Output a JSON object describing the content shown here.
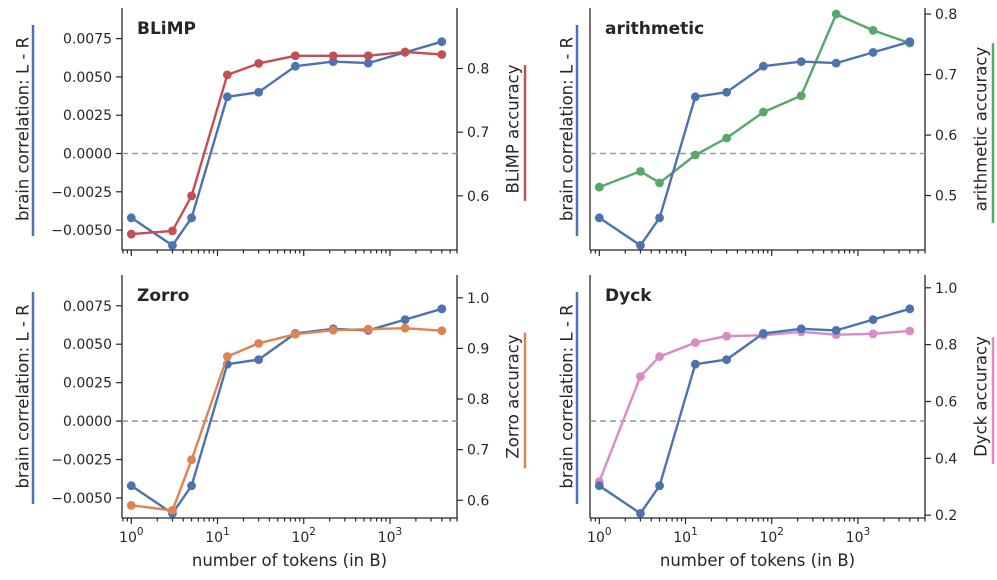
{
  "colors": {
    "brain": "#4c72b0",
    "blimp": "#c44e52",
    "arithmetic": "#55a868",
    "zorro": "#dd8452",
    "dyck": "#da8bc3",
    "zero_line": "#9a9a9a"
  },
  "chart_data": [
    {
      "type": "line",
      "title": "BLiMP",
      "xlabel": "",
      "ylabel_left": "brain correlation: L - R",
      "ylabel_right": "BLiMP accuracy",
      "xscale": "log",
      "xlim": [
        0.78,
        6000
      ],
      "x_ticks": [
        1,
        10,
        100,
        1000
      ],
      "x_tick_labels": [
        "10^0",
        "10^1",
        "10^2",
        "10^3"
      ],
      "ylim_left": [
        -0.0063,
        0.0095
      ],
      "y_ticks_left": [
        -0.005,
        -0.0025,
        0.0,
        0.0025,
        0.005,
        0.0075
      ],
      "y_tick_labels_left": [
        "−0.0050",
        "−0.0025",
        "0.0000",
        "0.0025",
        "0.0050",
        "0.0075"
      ],
      "ylim_right": [
        0.515,
        0.895
      ],
      "y_ticks_right": [
        0.6,
        0.7,
        0.8
      ],
      "y_tick_labels_right": [
        "0.6",
        "0.7",
        "0.8"
      ],
      "reference_line_left": 0.0,
      "x": [
        1,
        3,
        5,
        13,
        30,
        80,
        220,
        560,
        1500,
        4000
      ],
      "series": [
        {
          "name": "brain correlation: L - R",
          "axis": "left",
          "values": [
            -0.0042,
            -0.006,
            -0.0042,
            0.0037,
            0.004,
            0.0057,
            0.006,
            0.0059,
            0.0066,
            0.0073
          ]
        },
        {
          "name": "BLiMP accuracy",
          "axis": "right",
          "values": [
            0.54,
            0.545,
            0.6,
            0.79,
            0.808,
            0.82,
            0.82,
            0.82,
            0.826,
            0.822
          ]
        }
      ]
    },
    {
      "type": "line",
      "title": "arithmetic",
      "xlabel": "",
      "ylabel_left": "brain correlation: L - R",
      "ylabel_right": "arithmetic accuracy",
      "xscale": "log",
      "xlim": [
        0.78,
        6000
      ],
      "x_ticks": [
        1,
        10,
        100,
        1000
      ],
      "x_tick_labels": [
        "10^0",
        "10^1",
        "10^2",
        "10^3"
      ],
      "ylim_left": [
        -0.0063,
        0.0095
      ],
      "y_ticks_left": [],
      "y_tick_labels_left": [],
      "ylim_right": [
        0.41,
        0.81
      ],
      "y_ticks_right": [
        0.5,
        0.6,
        0.7,
        0.8
      ],
      "y_tick_labels_right": [
        "0.5",
        "0.6",
        "0.7",
        "0.8"
      ],
      "reference_line_left": 0.0,
      "x": [
        1,
        3,
        5,
        13,
        30,
        80,
        220,
        560,
        1500,
        4000
      ],
      "series": [
        {
          "name": "brain correlation: L - R",
          "axis": "left",
          "values": [
            -0.0042,
            -0.006,
            -0.0042,
            0.0037,
            0.004,
            0.0057,
            0.006,
            0.0059,
            0.0066,
            0.0073
          ]
        },
        {
          "name": "arithmetic accuracy",
          "axis": "right",
          "values": [
            0.514,
            0.54,
            0.521,
            0.567,
            0.595,
            0.638,
            0.665,
            0.8,
            0.773,
            0.752
          ]
        }
      ]
    },
    {
      "type": "line",
      "title": "Zorro",
      "xlabel": "number of tokens (in B)",
      "ylabel_left": "brain correlation: L - R",
      "ylabel_right": "Zorro accuracy",
      "xscale": "log",
      "xlim": [
        0.78,
        6000
      ],
      "x_ticks": [
        1,
        10,
        100,
        1000
      ],
      "x_tick_labels": [
        "10^0",
        "10^1",
        "10^2",
        "10^3"
      ],
      "ylim_left": [
        -0.0063,
        0.0095
      ],
      "y_ticks_left": [
        -0.005,
        -0.0025,
        0.0,
        0.0025,
        0.005,
        0.0075
      ],
      "y_tick_labels_left": [
        "−0.0050",
        "−0.0025",
        "0.0000",
        "0.0025",
        "0.0050",
        "0.0075"
      ],
      "ylim_right": [
        0.565,
        1.045
      ],
      "y_ticks_right": [
        0.6,
        0.7,
        0.8,
        0.9,
        1.0
      ],
      "y_tick_labels_right": [
        "0.6",
        "0.7",
        "0.8",
        "0.9",
        "1.0"
      ],
      "reference_line_left": 0.0,
      "x": [
        1,
        3,
        5,
        13,
        30,
        80,
        220,
        560,
        1500,
        4000
      ],
      "series": [
        {
          "name": "brain correlation: L - R",
          "axis": "left",
          "values": [
            -0.0042,
            -0.006,
            -0.0042,
            0.0037,
            0.004,
            0.0057,
            0.006,
            0.0059,
            0.0066,
            0.0073
          ]
        },
        {
          "name": "Zorro accuracy",
          "axis": "right",
          "values": [
            0.59,
            0.58,
            0.68,
            0.884,
            0.91,
            0.928,
            0.936,
            0.938,
            0.94,
            0.935
          ]
        }
      ]
    },
    {
      "type": "line",
      "title": "Dyck",
      "xlabel": "number of tokens (in B)",
      "ylabel_left": "brain correlation: L - R",
      "ylabel_right": "Dyck accuracy",
      "xscale": "log",
      "xlim": [
        0.78,
        6000
      ],
      "x_ticks": [
        1,
        10,
        100,
        1000
      ],
      "x_tick_labels": [
        "10^0",
        "10^1",
        "10^2",
        "10^3"
      ],
      "ylim_left": [
        -0.0063,
        0.0095
      ],
      "y_ticks_left": [],
      "y_tick_labels_left": [],
      "ylim_right": [
        0.19,
        1.045
      ],
      "y_ticks_right": [
        0.2,
        0.4,
        0.6,
        0.8,
        1.0
      ],
      "y_tick_labels_right": [
        "0.2",
        "0.4",
        "0.6",
        "0.8",
        "1.0"
      ],
      "reference_line_left": 0.0,
      "x": [
        1,
        3,
        5,
        13,
        30,
        80,
        220,
        560,
        1500,
        4000
      ],
      "series": [
        {
          "name": "brain correlation: L - R",
          "axis": "left",
          "values": [
            -0.0042,
            -0.006,
            -0.0042,
            0.0037,
            0.004,
            0.0057,
            0.006,
            0.0059,
            0.0066,
            0.0073
          ]
        },
        {
          "name": "Dyck accuracy",
          "axis": "right",
          "values": [
            0.318,
            0.688,
            0.758,
            0.807,
            0.83,
            0.833,
            0.845,
            0.835,
            0.838,
            0.848
          ]
        }
      ]
    }
  ]
}
